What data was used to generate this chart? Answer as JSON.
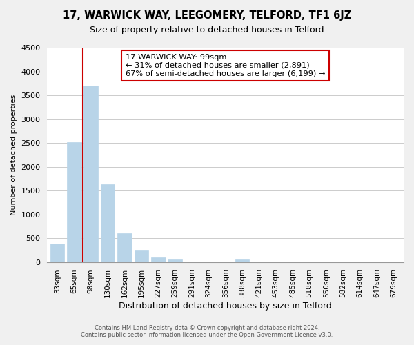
{
  "title": "17, WARWICK WAY, LEEGOMERY, TELFORD, TF1 6JZ",
  "subtitle": "Size of property relative to detached houses in Telford",
  "xlabel": "Distribution of detached houses by size in Telford",
  "ylabel": "Number of detached properties",
  "bar_labels": [
    "33sqm",
    "65sqm",
    "98sqm",
    "130sqm",
    "162sqm",
    "195sqm",
    "227sqm",
    "259sqm",
    "291sqm",
    "324sqm",
    "356sqm",
    "388sqm",
    "421sqm",
    "453sqm",
    "485sqm",
    "518sqm",
    "550sqm",
    "582sqm",
    "614sqm",
    "647sqm",
    "679sqm"
  ],
  "bar_values": [
    380,
    2510,
    3700,
    1630,
    600,
    240,
    100,
    55,
    0,
    0,
    0,
    55,
    0,
    0,
    0,
    0,
    0,
    0,
    0,
    0,
    0
  ],
  "bar_color": "#b8d4e8",
  "highlight_bar_index": 2,
  "highlight_color": "#cc0000",
  "ylim": [
    0,
    4500
  ],
  "yticks": [
    0,
    500,
    1000,
    1500,
    2000,
    2500,
    3000,
    3500,
    4000,
    4500
  ],
  "annotation_title": "17 WARWICK WAY: 99sqm",
  "annotation_line1": "← 31% of detached houses are smaller (2,891)",
  "annotation_line2": "67% of semi-detached houses are larger (6,199) →",
  "annotation_box_color": "#ffffff",
  "annotation_box_edge": "#cc0000",
  "footer1": "Contains HM Land Registry data © Crown copyright and database right 2024.",
  "footer2": "Contains public sector information licensed under the Open Government Licence v3.0.",
  "bg_color": "#ffffff",
  "grid_color": "#cccccc",
  "fig_bg": "#f0f0f0"
}
